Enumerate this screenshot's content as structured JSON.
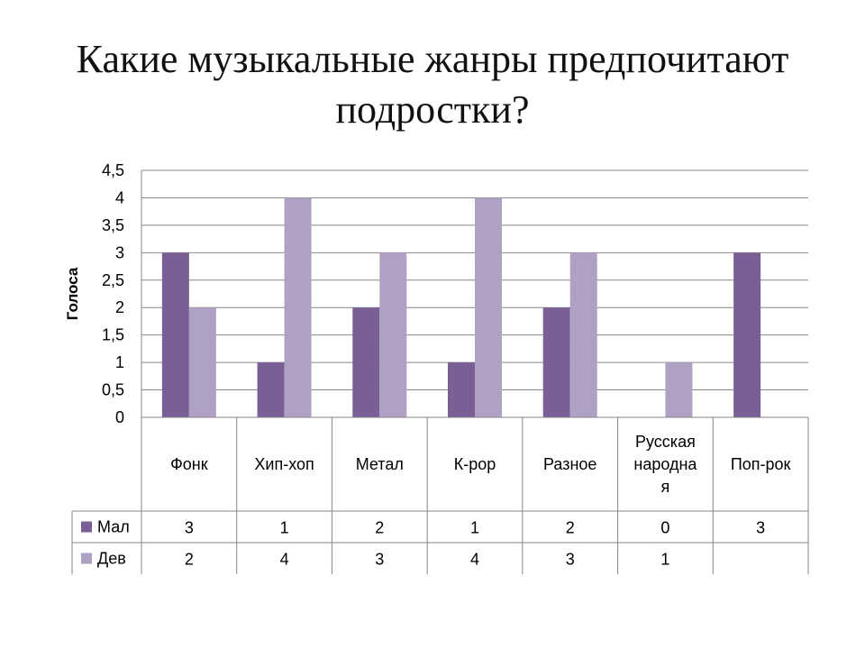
{
  "title": "Какие музыкальные жанры предпочитают подростки?",
  "chart_data": {
    "type": "bar",
    "ylabel": "Голоса",
    "xlabel": "",
    "ylim": [
      0,
      4.5
    ],
    "yticks": [
      "0",
      "0,5",
      "1",
      "1,5",
      "2",
      "2,5",
      "3",
      "3,5",
      "4",
      "4,5"
    ],
    "grid": true,
    "categories": [
      [
        "Фонк"
      ],
      [
        "Хип-хоп"
      ],
      [
        "Метал"
      ],
      [
        "К-рор"
      ],
      [
        "Разное"
      ],
      [
        "Русская",
        "народна",
        "я"
      ],
      [
        "Поп-рок"
      ]
    ],
    "series": [
      {
        "name": "Мал",
        "color": "#7a5f96",
        "values": [
          3,
          1,
          2,
          1,
          2,
          0,
          3
        ],
        "labels": [
          "3",
          "1",
          "2",
          "1",
          "2",
          "0",
          "3"
        ]
      },
      {
        "name": "Дев",
        "color": "#afa1c4",
        "values": [
          2,
          4,
          3,
          4,
          3,
          1,
          null
        ],
        "labels": [
          "2",
          "4",
          "3",
          "4",
          "3",
          "1",
          ""
        ]
      }
    ],
    "legend": "data-table"
  }
}
